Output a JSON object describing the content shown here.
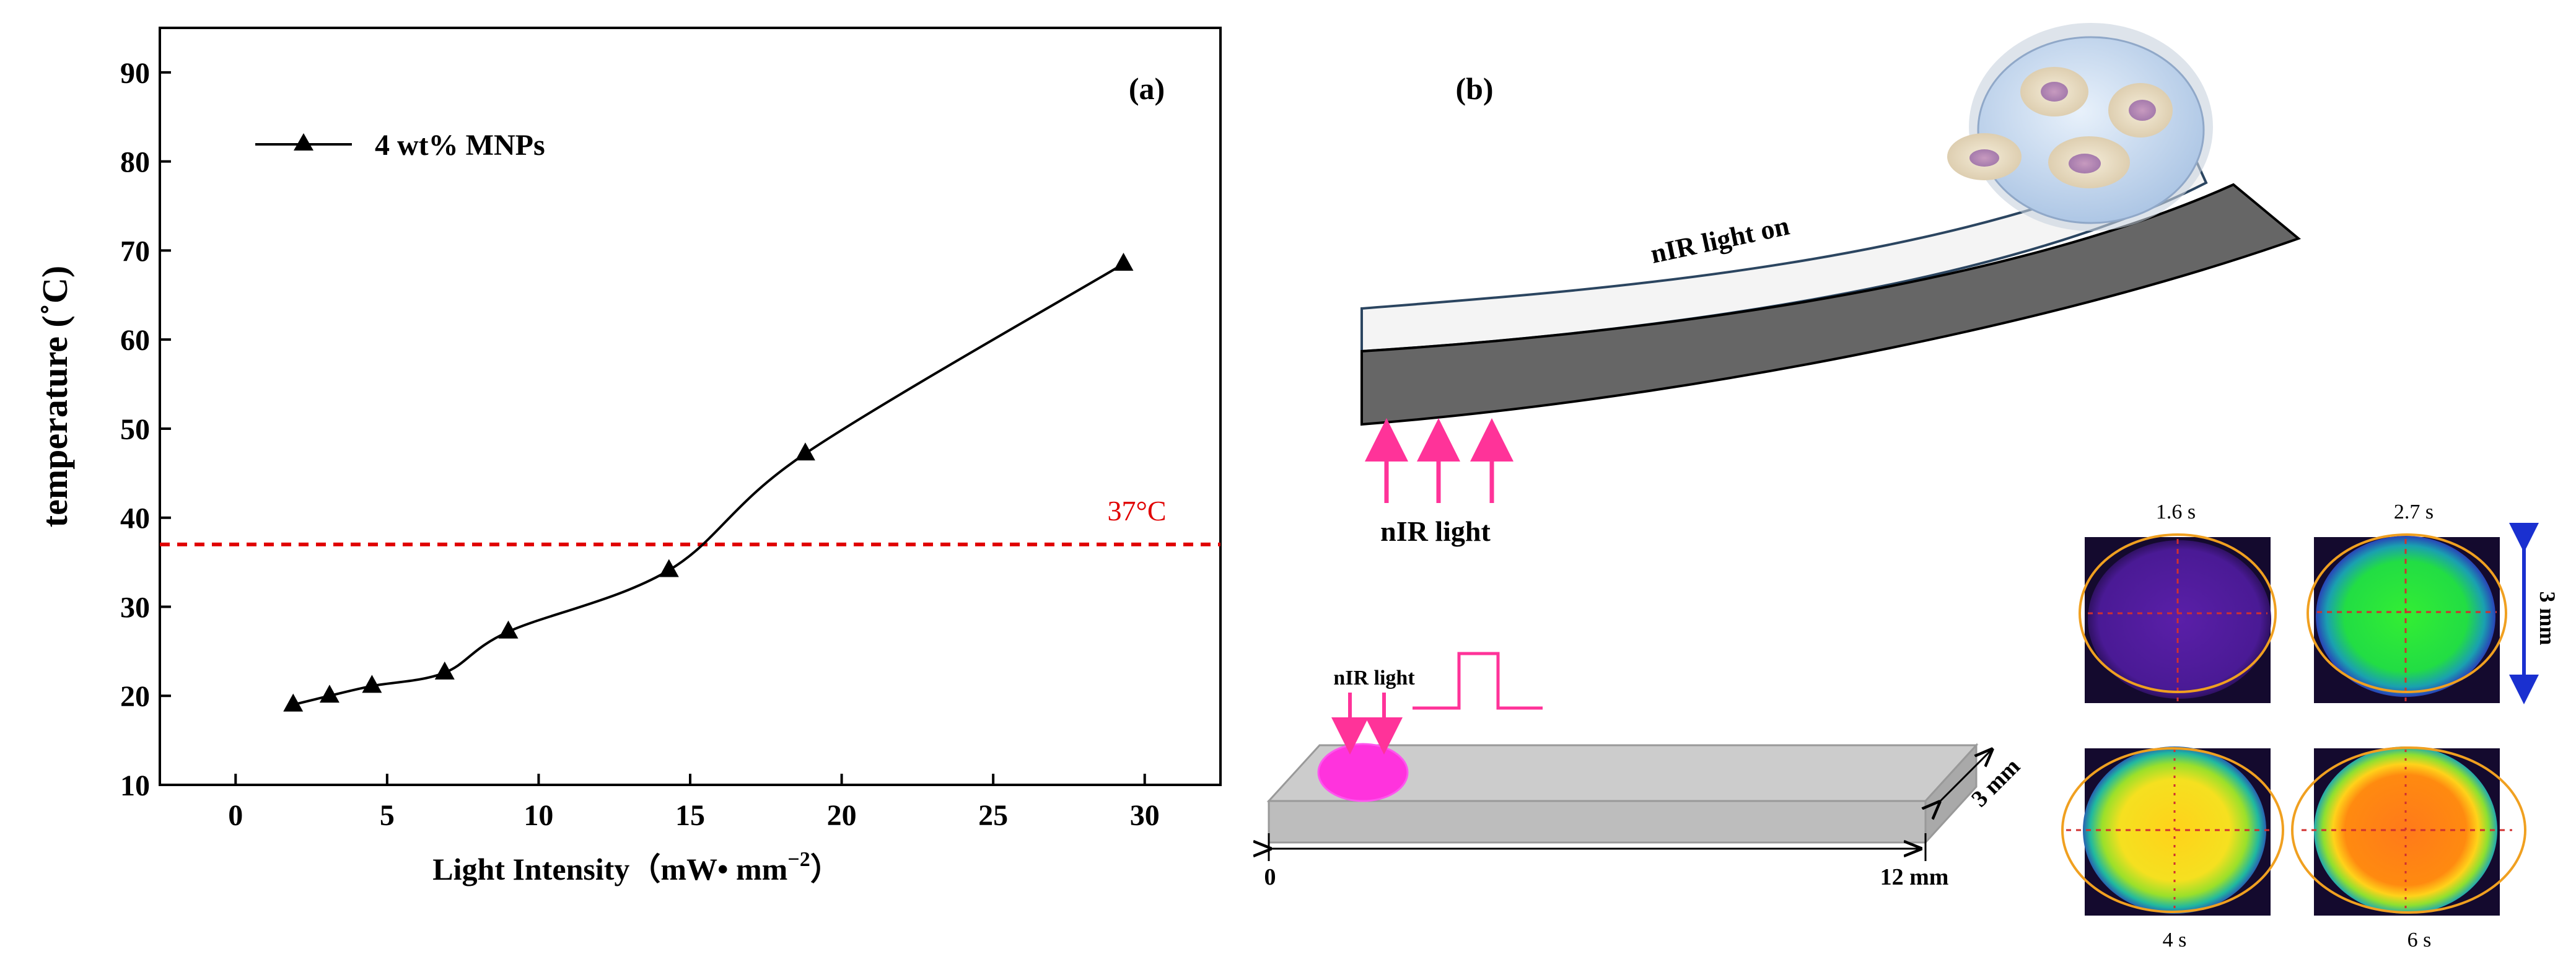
{
  "panel_a": {
    "label": "(a)",
    "legend": "4 wt% MNPs",
    "threshold_label": "37°C",
    "xlabel": "Light Intensity（mW• mm",
    "xlabel_sup": "−2",
    "xlabel_end": "）",
    "ylabel": "temperature (˚C)"
  },
  "panel_b": {
    "label": "(b)",
    "light_on": "nIR light on",
    "light_label": "nIR light",
    "small_light_label": "nIR light",
    "dim_width": "3 mm",
    "dim_length": "12 mm",
    "origin": "0",
    "thermal_dim": "3 mm",
    "thermal_times": [
      "1.6 s",
      "2.7 s",
      "4 s",
      "6 s"
    ]
  },
  "colors": {
    "curve": "#000000",
    "threshold": "#e00000",
    "pink": "#ff3399",
    "strip_dark": "#666666",
    "strip_light": "#f4f4f4",
    "orange_ring": "#f0a020",
    "blue_arrow": "#1a30d0"
  },
  "chart_data": {
    "type": "line",
    "title": "",
    "xlabel": "Light Intensity（mW• mm−2）",
    "ylabel": "temperature (˚C)",
    "xlim": [
      -2.5,
      32.5
    ],
    "ylim": [
      10,
      95
    ],
    "xticks": [
      0,
      5,
      10,
      15,
      20,
      25,
      30
    ],
    "yticks": [
      10,
      20,
      30,
      40,
      50,
      60,
      70,
      80,
      90
    ],
    "series": [
      {
        "name": "4 wt% MNPs",
        "x": [
          1.9,
          3.1,
          4.5,
          6.9,
          9.0,
          14.3,
          18.8,
          29.3
        ],
        "y": [
          19.0,
          20.0,
          21.1,
          22.6,
          27.2,
          34.1,
          47.2,
          68.5
        ]
      }
    ],
    "reference_line": {
      "y": 37,
      "label": "37°C"
    },
    "grid": false,
    "legend_position": "top-left"
  }
}
